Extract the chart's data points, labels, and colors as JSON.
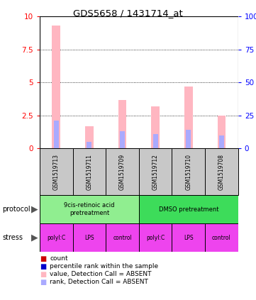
{
  "title": "GDS5658 / 1431714_at",
  "samples": [
    "GSM1519713",
    "GSM1519711",
    "GSM1519709",
    "GSM1519712",
    "GSM1519710",
    "GSM1519708"
  ],
  "bar_values_pink": [
    9.3,
    1.7,
    3.7,
    3.2,
    4.7,
    2.5
  ],
  "bar_values_blue": [
    2.1,
    0.5,
    1.3,
    1.1,
    1.4,
    1.0
  ],
  "ylim_left": [
    0,
    10
  ],
  "ylim_right": [
    0,
    100
  ],
  "yticks_left": [
    0,
    2.5,
    5,
    7.5,
    10
  ],
  "yticks_right": [
    0,
    25,
    50,
    75,
    100
  ],
  "protocol_labels": [
    "9cis-retinoic acid\npretreatment",
    "DMSO pretreatment"
  ],
  "protocol_colors": [
    "#90EE90",
    "#3DDC5A"
  ],
  "stress_labels": [
    "polyI:C",
    "LPS",
    "control",
    "polyI:C",
    "LPS",
    "control"
  ],
  "stress_color": "#EE44EE",
  "sample_box_color": "#C8C8C8",
  "legend_items": [
    {
      "color": "#CC0000",
      "label": "count"
    },
    {
      "color": "#0000CC",
      "label": "percentile rank within the sample"
    },
    {
      "color": "#FFB6C1",
      "label": "value, Detection Call = ABSENT"
    },
    {
      "color": "#AAAAFF",
      "label": "rank, Detection Call = ABSENT"
    }
  ],
  "pink_bar_width": 0.25,
  "blue_bar_width": 0.15,
  "background_color": "#ffffff"
}
